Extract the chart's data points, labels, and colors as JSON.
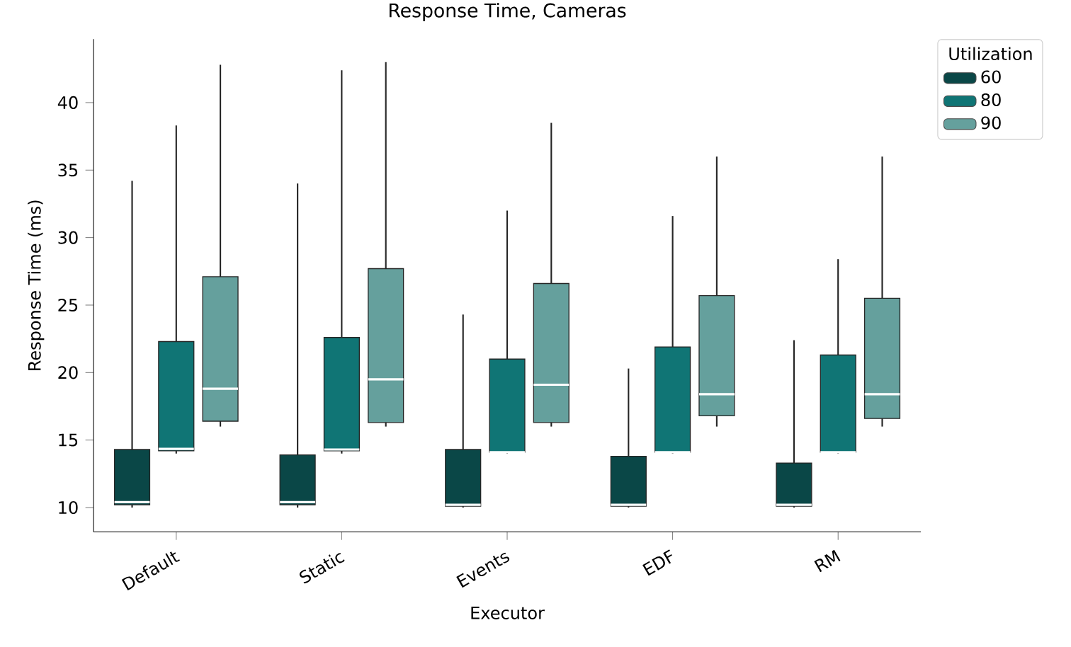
{
  "chart_data": {
    "type": "box",
    "title": "Response Time, Cameras",
    "xlabel": "Executor",
    "ylabel": "Response Time (ms)",
    "legend_title": "Utilization",
    "categories": [
      "Default",
      "Static",
      "Events",
      "EDF",
      "RM"
    ],
    "ylim": [
      8.2,
      44.7
    ],
    "yticks": [
      10,
      15,
      20,
      25,
      30,
      35,
      40
    ],
    "grid": false,
    "legend": "top right",
    "series": [
      {
        "name": "60",
        "color": "#0a4747",
        "boxes": [
          {
            "low": 10.0,
            "q1": 10.2,
            "median": 10.4,
            "q3": 14.3,
            "high": 34.2
          },
          {
            "low": 10.0,
            "q1": 10.2,
            "median": 10.4,
            "q3": 13.9,
            "high": 34.0
          },
          {
            "low": 10.0,
            "q1": 10.1,
            "median": 10.2,
            "q3": 14.3,
            "high": 24.3
          },
          {
            "low": 10.0,
            "q1": 10.1,
            "median": 10.2,
            "q3": 13.8,
            "high": 20.3
          },
          {
            "low": 10.0,
            "q1": 10.1,
            "median": 10.2,
            "q3": 13.3,
            "high": 22.4
          }
        ]
      },
      {
        "name": "80",
        "color": "#107575",
        "boxes": [
          {
            "low": 14.0,
            "q1": 14.2,
            "median": 14.35,
            "q3": 22.3,
            "high": 38.3
          },
          {
            "low": 14.0,
            "q1": 14.2,
            "median": 14.3,
            "q3": 22.6,
            "high": 42.4
          },
          {
            "low": 14.0,
            "q1": 14.1,
            "median": 14.1,
            "q3": 21.0,
            "high": 32.0
          },
          {
            "low": 14.0,
            "q1": 14.1,
            "median": 14.1,
            "q3": 21.9,
            "high": 31.6
          },
          {
            "low": 14.0,
            "q1": 14.1,
            "median": 14.1,
            "q3": 21.3,
            "high": 28.4
          }
        ]
      },
      {
        "name": "90",
        "color": "#65a09d",
        "boxes": [
          {
            "low": 16.0,
            "q1": 16.4,
            "median": 18.8,
            "q3": 27.1,
            "high": 42.8
          },
          {
            "low": 16.0,
            "q1": 16.3,
            "median": 19.5,
            "q3": 27.7,
            "high": 43.0
          },
          {
            "low": 16.0,
            "q1": 16.3,
            "median": 19.1,
            "q3": 26.6,
            "high": 38.5
          },
          {
            "low": 16.0,
            "q1": 16.8,
            "median": 18.4,
            "q3": 25.7,
            "high": 36.0
          },
          {
            "low": 16.0,
            "q1": 16.6,
            "median": 18.4,
            "q3": 25.5,
            "high": 36.0
          }
        ]
      }
    ]
  }
}
